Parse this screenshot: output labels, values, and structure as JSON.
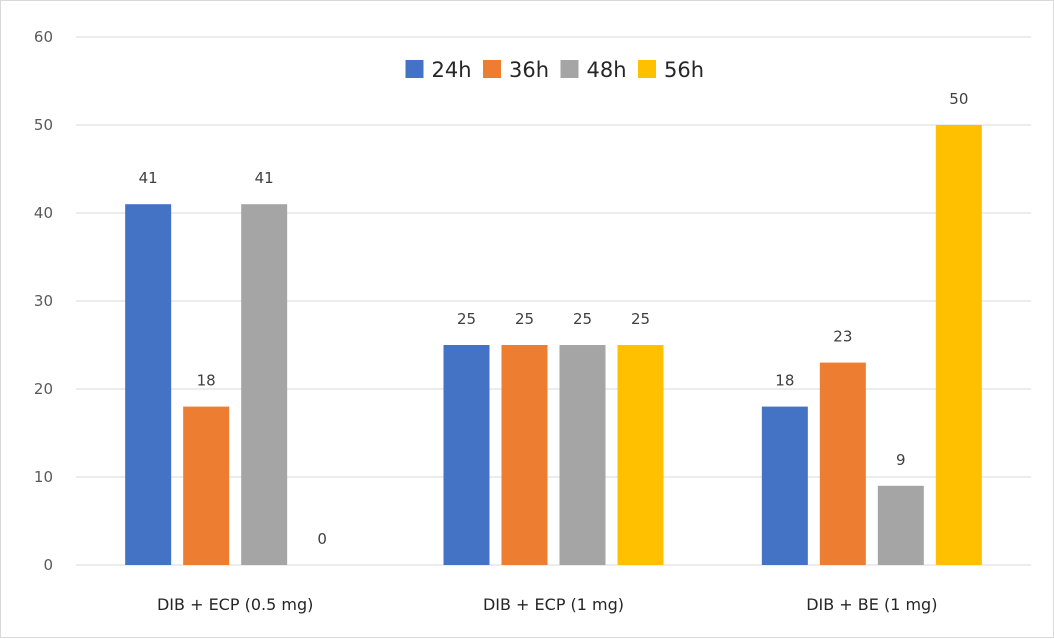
{
  "chart_data": {
    "type": "bar",
    "categories": [
      "DIB + ECP (0.5 mg)",
      "DIB + ECP (1 mg)",
      "DIB + BE (1 mg)"
    ],
    "series": [
      {
        "name": "24h",
        "values": [
          41,
          25,
          18
        ],
        "color": "#4472c4"
      },
      {
        "name": "36h",
        "values": [
          18,
          25,
          23
        ],
        "color": "#ed7d31"
      },
      {
        "name": "48h",
        "values": [
          41,
          25,
          9
        ],
        "color": "#a5a5a5"
      },
      {
        "name": "56h",
        "values": [
          0,
          25,
          50
        ],
        "color": "#ffc000"
      }
    ],
    "ylim": [
      0,
      60
    ],
    "yticks": [
      0,
      10,
      20,
      30,
      40,
      50,
      60
    ],
    "grid": true,
    "legend": "top-center",
    "data_labels": true
  }
}
